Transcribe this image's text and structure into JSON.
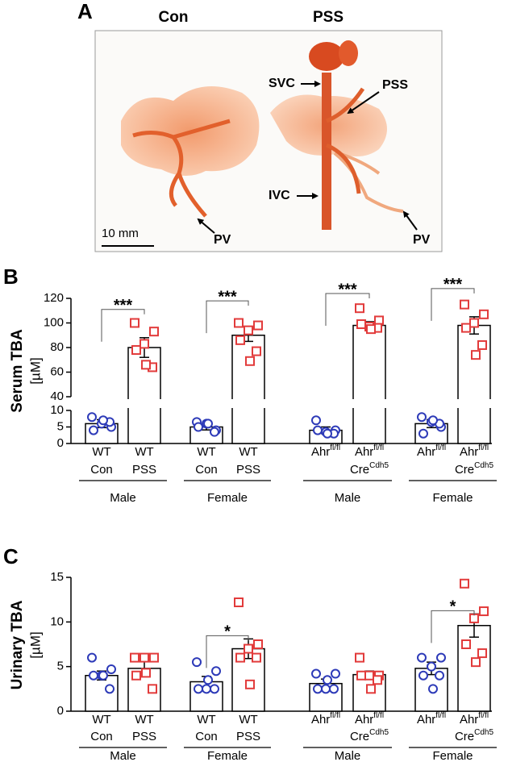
{
  "panel_a": {
    "label": "A",
    "columns": [
      "Con",
      "PSS"
    ],
    "annotations": {
      "svc": "SVC",
      "pss": "PSS",
      "ivc": "IVC",
      "pv_left": "PV",
      "pv_right": "PV",
      "scale": "10 mm"
    }
  },
  "chart_data": [
    {
      "panel_label": "B",
      "type": "bar",
      "ylabel": "Serum TBA",
      "yunit": "[µM]",
      "categories": [
        {
          "top": [
            "WT"
          ],
          "bottom": [
            "Con"
          ]
        },
        {
          "top": [
            "WT"
          ],
          "bottom": [
            "PSS"
          ]
        },
        {
          "top": [
            "WT"
          ],
          "bottom": [
            "Con"
          ]
        },
        {
          "top": [
            "WT"
          ],
          "bottom": [
            "PSS"
          ]
        },
        {
          "top": [
            "Ahr",
            "fl/fl"
          ]
        },
        {
          "top": [
            "Ahr",
            "fl/fl"
          ],
          "bottom": [
            "Cre",
            "Cdh5"
          ]
        },
        {
          "top": [
            "Ahr",
            "fl/fl"
          ]
        },
        {
          "top": [
            "Ahr",
            "fl/fl"
          ],
          "bottom": [
            "Cre",
            "Cdh5"
          ]
        }
      ],
      "groups": [
        "Male",
        "Female",
        "Male",
        "Female"
      ],
      "values": [
        6,
        80,
        5,
        90,
        4,
        98,
        6,
        98
      ],
      "errors": [
        1.2,
        8,
        0.9,
        5,
        1,
        3,
        1.2,
        7
      ],
      "points": [
        [
          8,
          5,
          6,
          4,
          6.5,
          7
        ],
        [
          100,
          93,
          83,
          78,
          64,
          66
        ],
        [
          6.5,
          4,
          6,
          5,
          3.5,
          6
        ],
        [
          100,
          98,
          94,
          86,
          77,
          69
        ],
        [
          7,
          4,
          3.5,
          4,
          3,
          3
        ],
        [
          112,
          102,
          97,
          99,
          96,
          95
        ],
        [
          8,
          5,
          6.5,
          3,
          6,
          7
        ],
        [
          115,
          107,
          100,
          96,
          82,
          74
        ]
      ],
      "point_colors": [
        "#2d3ab8",
        "#e23b3b",
        "#2d3ab8",
        "#e23b3b",
        "#2d3ab8",
        "#e23b3b",
        "#2d3ab8",
        "#e23b3b"
      ],
      "point_markers": [
        "circle",
        "square",
        "circle",
        "square",
        "circle",
        "square",
        "circle",
        "square"
      ],
      "bar_color": "#ffffff",
      "ylim": [
        0,
        120
      ],
      "axis_break": [
        10,
        40
      ],
      "yticks": [
        0,
        5,
        10,
        40,
        60,
        80,
        100,
        120
      ],
      "significance": [
        "***",
        "***",
        "***",
        "***"
      ]
    },
    {
      "panel_label": "C",
      "type": "bar",
      "ylabel": "Urinary TBA",
      "yunit": "[µM]",
      "categories": [
        {
          "top": [
            "WT"
          ],
          "bottom": [
            "Con"
          ]
        },
        {
          "top": [
            "WT"
          ],
          "bottom": [
            "PSS"
          ]
        },
        {
          "top": [
            "WT"
          ],
          "bottom": [
            "Con"
          ]
        },
        {
          "top": [
            "WT"
          ],
          "bottom": [
            "PSS"
          ]
        },
        {
          "top": [
            "Ahr",
            "fl/fl"
          ]
        },
        {
          "top": [
            "Ahr",
            "fl/fl"
          ],
          "bottom": [
            "Cre",
            "Cdh5"
          ]
        },
        {
          "top": [
            "Ahr",
            "fl/fl"
          ]
        },
        {
          "top": [
            "Ahr",
            "fl/fl"
          ],
          "bottom": [
            "Cre",
            "Cdh5"
          ]
        }
      ],
      "groups": [
        "Male",
        "Female",
        "Male",
        "Female"
      ],
      "values": [
        4,
        4.8,
        3.3,
        7,
        3.1,
        4.1,
        4.8,
        9.6
      ],
      "errors": [
        0.5,
        0.8,
        0.6,
        1.1,
        0.5,
        0.4,
        0.7,
        1.3
      ],
      "points": [
        [
          6,
          4.7,
          4,
          4,
          2.5,
          4
        ],
        [
          6,
          6,
          6,
          4,
          2.5,
          4.3
        ],
        [
          5.5,
          4.5,
          2.5,
          2.5,
          2.5,
          3.5
        ],
        [
          12.2,
          7.5,
          7,
          6,
          6,
          3
        ],
        [
          4.2,
          4.2,
          2.5,
          2.5,
          2.5,
          3.5
        ],
        [
          6,
          4,
          4,
          4,
          3.5,
          2.5
        ],
        [
          6,
          6,
          5,
          4,
          4,
          2.5
        ],
        [
          14.3,
          11.2,
          10.4,
          7.5,
          6.5,
          5.5
        ]
      ],
      "point_colors": [
        "#2d3ab8",
        "#e23b3b",
        "#2d3ab8",
        "#e23b3b",
        "#2d3ab8",
        "#e23b3b",
        "#2d3ab8",
        "#e23b3b"
      ],
      "point_markers": [
        "circle",
        "square",
        "circle",
        "square",
        "circle",
        "square",
        "circle",
        "square"
      ],
      "bar_color": "#ffffff",
      "ylim": [
        0,
        15
      ],
      "yticks": [
        0,
        5,
        10,
        15
      ],
      "significance": [
        null,
        "*",
        null,
        "*"
      ]
    }
  ]
}
